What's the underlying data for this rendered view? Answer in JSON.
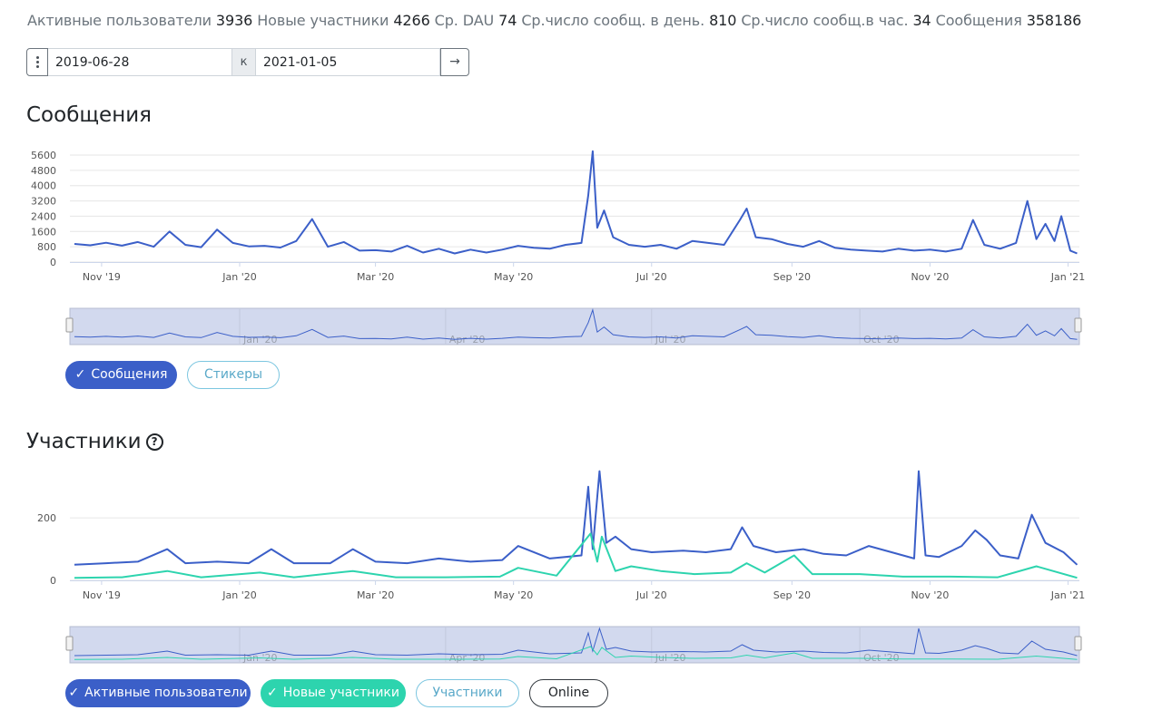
{
  "stats": [
    {
      "label": "Активные пользователи",
      "value": "3936"
    },
    {
      "label": "Новые участники",
      "value": "4266"
    },
    {
      "label": "Ср. DAU",
      "value": "74"
    },
    {
      "label": "Ср.число сообщ. в день.",
      "value": "810"
    },
    {
      "label": "Ср.число сообщ.в час.",
      "value": "34"
    },
    {
      "label": "Сообщения",
      "value": "358186"
    }
  ],
  "date_range": {
    "from": "2019-06-28",
    "separator": "к",
    "to": "2021-01-05",
    "go_label": "→"
  },
  "messages_section": {
    "title": "Сообщения",
    "buttons": [
      {
        "label": "Сообщения",
        "active": true,
        "check": "✓"
      },
      {
        "label": "Стикеры",
        "active": false
      }
    ]
  },
  "members_section": {
    "title": "Участники",
    "help_icon": "?",
    "buttons": [
      {
        "label": "Активные пользователи",
        "active": true,
        "check": "✓"
      },
      {
        "label": "Новые участники",
        "active": true,
        "check": "✓"
      },
      {
        "label": "Участники",
        "active": false
      },
      {
        "label": "Online",
        "active": false
      }
    ]
  },
  "colors": {
    "blue": "#3b5fc8",
    "teal": "#2dd4ae",
    "grid": "#e6e6e6",
    "navigator_fill": "#d2d9ee"
  },
  "chart_data": [
    {
      "type": "line",
      "title": "Сообщения",
      "x_ticks": [
        "Nov '19",
        "Jan '20",
        "Mar '20",
        "May '20",
        "Jul '20",
        "Sep '20",
        "Nov '20",
        "Jan '21"
      ],
      "y_ticks": [
        "0",
        "800",
        "1600",
        "2400",
        "3200",
        "4000",
        "4800",
        "5600"
      ],
      "ylim": [
        0,
        5600
      ],
      "x_range": [
        "2019-10-18",
        "2021-01-06"
      ],
      "navigator_ticks": [
        "Jan '20",
        "Apr '20",
        "Jul '20",
        "Oct '20"
      ],
      "grid": true,
      "series": [
        {
          "name": "Сообщения",
          "color": "#3b5fc8",
          "points": [
            [
              "2019-10-20",
              950
            ],
            [
              "2019-10-27",
              880
            ],
            [
              "2019-11-03",
              1010
            ],
            [
              "2019-11-10",
              860
            ],
            [
              "2019-11-17",
              1050
            ],
            [
              "2019-11-24",
              800
            ],
            [
              "2019-12-01",
              1600
            ],
            [
              "2019-12-08",
              900
            ],
            [
              "2019-12-15",
              780
            ],
            [
              "2019-12-22",
              1700
            ],
            [
              "2019-12-29",
              1000
            ],
            [
              "2020-01-05",
              820
            ],
            [
              "2020-01-12",
              850
            ],
            [
              "2020-01-19",
              760
            ],
            [
              "2020-01-26",
              1100
            ],
            [
              "2020-02-02",
              2250
            ],
            [
              "2020-02-09",
              800
            ],
            [
              "2020-02-16",
              1050
            ],
            [
              "2020-02-23",
              600
            ],
            [
              "2020-03-01",
              620
            ],
            [
              "2020-03-08",
              550
            ],
            [
              "2020-03-15",
              850
            ],
            [
              "2020-03-22",
              500
            ],
            [
              "2020-03-29",
              700
            ],
            [
              "2020-04-05",
              450
            ],
            [
              "2020-04-12",
              650
            ],
            [
              "2020-04-19",
              500
            ],
            [
              "2020-04-26",
              650
            ],
            [
              "2020-05-03",
              850
            ],
            [
              "2020-05-10",
              750
            ],
            [
              "2020-05-17",
              700
            ],
            [
              "2020-05-24",
              900
            ],
            [
              "2020-05-31",
              1000
            ],
            [
              "2020-06-03",
              3500
            ],
            [
              "2020-06-05",
              5800
            ],
            [
              "2020-06-07",
              1800
            ],
            [
              "2020-06-10",
              2700
            ],
            [
              "2020-06-14",
              1300
            ],
            [
              "2020-06-21",
              900
            ],
            [
              "2020-06-28",
              800
            ],
            [
              "2020-07-05",
              900
            ],
            [
              "2020-07-12",
              700
            ],
            [
              "2020-07-19",
              1100
            ],
            [
              "2020-07-26",
              1000
            ],
            [
              "2020-08-02",
              900
            ],
            [
              "2020-08-09",
              2200
            ],
            [
              "2020-08-12",
              2800
            ],
            [
              "2020-08-16",
              1300
            ],
            [
              "2020-08-23",
              1200
            ],
            [
              "2020-08-30",
              950
            ],
            [
              "2020-09-06",
              800
            ],
            [
              "2020-09-13",
              1100
            ],
            [
              "2020-09-20",
              750
            ],
            [
              "2020-09-27",
              650
            ],
            [
              "2020-10-04",
              600
            ],
            [
              "2020-10-11",
              550
            ],
            [
              "2020-10-18",
              700
            ],
            [
              "2020-10-25",
              600
            ],
            [
              "2020-11-01",
              650
            ],
            [
              "2020-11-08",
              550
            ],
            [
              "2020-11-15",
              700
            ],
            [
              "2020-11-20",
              2200
            ],
            [
              "2020-11-25",
              900
            ],
            [
              "2020-12-02",
              700
            ],
            [
              "2020-12-09",
              1000
            ],
            [
              "2020-12-14",
              3200
            ],
            [
              "2020-12-18",
              1200
            ],
            [
              "2020-12-22",
              2000
            ],
            [
              "2020-12-26",
              1100
            ],
            [
              "2020-12-29",
              2400
            ],
            [
              "2021-01-02",
              600
            ],
            [
              "2021-01-05",
              450
            ]
          ]
        }
      ]
    },
    {
      "type": "line",
      "title": "Участники",
      "x_ticks": [
        "Nov '19",
        "Jan '20",
        "Mar '20",
        "May '20",
        "Jul '20",
        "Sep '20",
        "Nov '20",
        "Jan '21"
      ],
      "y_ticks": [
        "0",
        "200"
      ],
      "ylim": [
        0,
        340
      ],
      "x_range": [
        "2019-10-18",
        "2021-01-06"
      ],
      "navigator_ticks": [
        "Jan '20",
        "Apr '20",
        "Jul '20",
        "Oct '20"
      ],
      "grid": true,
      "series": [
        {
          "name": "Активные пользователи",
          "color": "#3b5fc8",
          "points": [
            [
              "2019-10-20",
              50
            ],
            [
              "2019-11-03",
              55
            ],
            [
              "2019-11-17",
              60
            ],
            [
              "2019-11-30",
              100
            ],
            [
              "2019-12-08",
              55
            ],
            [
              "2019-12-22",
              60
            ],
            [
              "2020-01-05",
              55
            ],
            [
              "2020-01-15",
              100
            ],
            [
              "2020-01-25",
              55
            ],
            [
              "2020-02-10",
              55
            ],
            [
              "2020-02-20",
              100
            ],
            [
              "2020-03-01",
              60
            ],
            [
              "2020-03-15",
              55
            ],
            [
              "2020-03-29",
              70
            ],
            [
              "2020-04-12",
              60
            ],
            [
              "2020-04-26",
              65
            ],
            [
              "2020-05-03",
              110
            ],
            [
              "2020-05-17",
              70
            ],
            [
              "2020-05-31",
              80
            ],
            [
              "2020-06-03",
              300
            ],
            [
              "2020-06-05",
              100
            ],
            [
              "2020-06-08",
              350
            ],
            [
              "2020-06-11",
              120
            ],
            [
              "2020-06-15",
              140
            ],
            [
              "2020-06-22",
              100
            ],
            [
              "2020-07-01",
              90
            ],
            [
              "2020-07-15",
              95
            ],
            [
              "2020-07-25",
              90
            ],
            [
              "2020-08-05",
              100
            ],
            [
              "2020-08-10",
              170
            ],
            [
              "2020-08-15",
              110
            ],
            [
              "2020-08-25",
              90
            ],
            [
              "2020-09-06",
              100
            ],
            [
              "2020-09-15",
              85
            ],
            [
              "2020-09-25",
              80
            ],
            [
              "2020-10-05",
              110
            ],
            [
              "2020-10-15",
              90
            ],
            [
              "2020-10-25",
              70
            ],
            [
              "2020-10-27",
              350
            ],
            [
              "2020-10-30",
              80
            ],
            [
              "2020-11-05",
              75
            ],
            [
              "2020-11-15",
              110
            ],
            [
              "2020-11-21",
              160
            ],
            [
              "2020-11-26",
              130
            ],
            [
              "2020-12-02",
              80
            ],
            [
              "2020-12-10",
              70
            ],
            [
              "2020-12-16",
              210
            ],
            [
              "2020-12-22",
              120
            ],
            [
              "2020-12-30",
              90
            ],
            [
              "2021-01-05",
              50
            ]
          ]
        },
        {
          "name": "Новые участники",
          "color": "#2dd4ae",
          "points": [
            [
              "2019-10-20",
              8
            ],
            [
              "2019-11-10",
              10
            ],
            [
              "2019-11-30",
              30
            ],
            [
              "2019-12-15",
              10
            ],
            [
              "2020-01-10",
              25
            ],
            [
              "2020-01-25",
              10
            ],
            [
              "2020-02-20",
              30
            ],
            [
              "2020-03-10",
              10
            ],
            [
              "2020-04-01",
              10
            ],
            [
              "2020-04-25",
              12
            ],
            [
              "2020-05-03",
              40
            ],
            [
              "2020-05-20",
              15
            ],
            [
              "2020-06-04",
              150
            ],
            [
              "2020-06-07",
              60
            ],
            [
              "2020-06-09",
              140
            ],
            [
              "2020-06-15",
              30
            ],
            [
              "2020-06-22",
              45
            ],
            [
              "2020-07-05",
              30
            ],
            [
              "2020-07-20",
              20
            ],
            [
              "2020-08-05",
              25
            ],
            [
              "2020-08-12",
              55
            ],
            [
              "2020-08-20",
              25
            ],
            [
              "2020-09-02",
              80
            ],
            [
              "2020-09-10",
              20
            ],
            [
              "2020-10-01",
              20
            ],
            [
              "2020-10-20",
              12
            ],
            [
              "2020-11-10",
              12
            ],
            [
              "2020-12-01",
              10
            ],
            [
              "2020-12-18",
              45
            ],
            [
              "2021-01-05",
              8
            ]
          ]
        }
      ]
    }
  ]
}
